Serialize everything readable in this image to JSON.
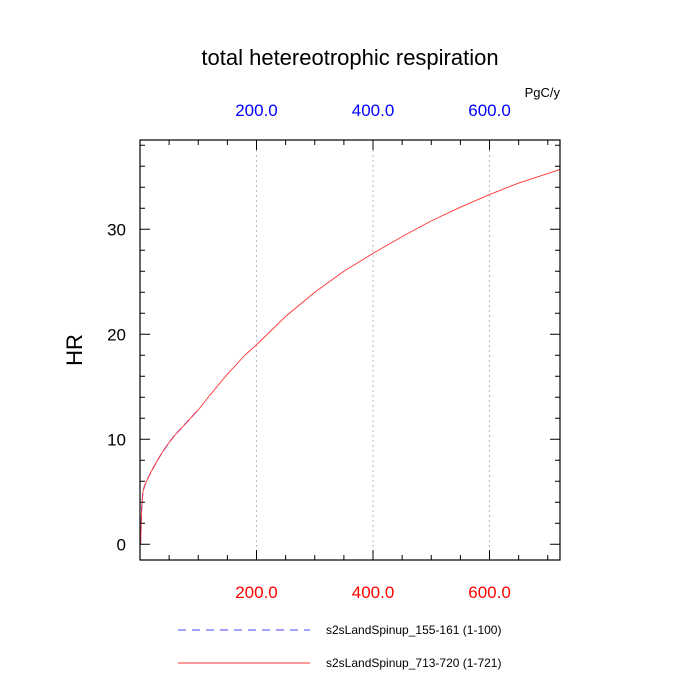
{
  "chart_data": {
    "type": "line",
    "title": "total hetereotrophic respiration",
    "ylabel": "HR",
    "top_axis_units": "PgC/y",
    "xlim": [
      0,
      721
    ],
    "ylim": [
      -1.5,
      38.5
    ],
    "x_ticks_major": [
      200,
      400,
      600
    ],
    "x_tick_labels_bottom": [
      "200.0",
      "400.0",
      "600.0"
    ],
    "x_tick_labels_top": [
      "200.0",
      "400.0",
      "600.0"
    ],
    "y_ticks_major": [
      0,
      10,
      20,
      30
    ],
    "y_tick_labels": [
      "0",
      "10",
      "20",
      "30"
    ],
    "vertical_grid": true,
    "colors": {
      "bottom_ticks": "#ff0000",
      "top_ticks": "#0000ff",
      "series_blue": "#4444ff",
      "series_red": "#ff3333",
      "grid": "#bbbbbb"
    },
    "series": [
      {
        "name": "s2sLandSpinup_155-161 (1-100)",
        "style": "dashed",
        "color": "#4444ff",
        "x": [
          1,
          2,
          3,
          5,
          8,
          12,
          20,
          30,
          40,
          50,
          60,
          70,
          80,
          90,
          100
        ],
        "y": [
          0.0,
          2.0,
          3.5,
          5.0,
          5.6,
          6.1,
          7.0,
          8.0,
          8.9,
          9.7,
          10.4,
          11.0,
          11.6,
          12.2,
          12.8
        ]
      },
      {
        "name": "s2sLandSpinup_713-720 (1-721)",
        "style": "solid",
        "color": "#ff3333",
        "x": [
          1,
          2,
          3,
          5,
          8,
          12,
          20,
          30,
          40,
          50,
          60,
          70,
          80,
          90,
          100,
          120,
          150,
          180,
          200,
          250,
          300,
          350,
          400,
          450,
          500,
          550,
          600,
          650,
          700,
          721
        ],
        "y": [
          0.0,
          2.0,
          3.5,
          5.0,
          5.6,
          6.1,
          7.0,
          8.0,
          8.9,
          9.7,
          10.4,
          11.0,
          11.6,
          12.2,
          12.8,
          14.2,
          16.2,
          18.0,
          19.0,
          21.7,
          24.0,
          26.0,
          27.7,
          29.3,
          30.8,
          32.1,
          33.3,
          34.4,
          35.3,
          35.7
        ]
      }
    ],
    "legend": [
      {
        "label": "s2sLandSpinup_155-161 (1-100)",
        "style": "dashed",
        "color": "#4444ff"
      },
      {
        "label": "s2sLandSpinup_713-720 (1-721)",
        "style": "solid",
        "color": "#ff3333"
      }
    ]
  }
}
